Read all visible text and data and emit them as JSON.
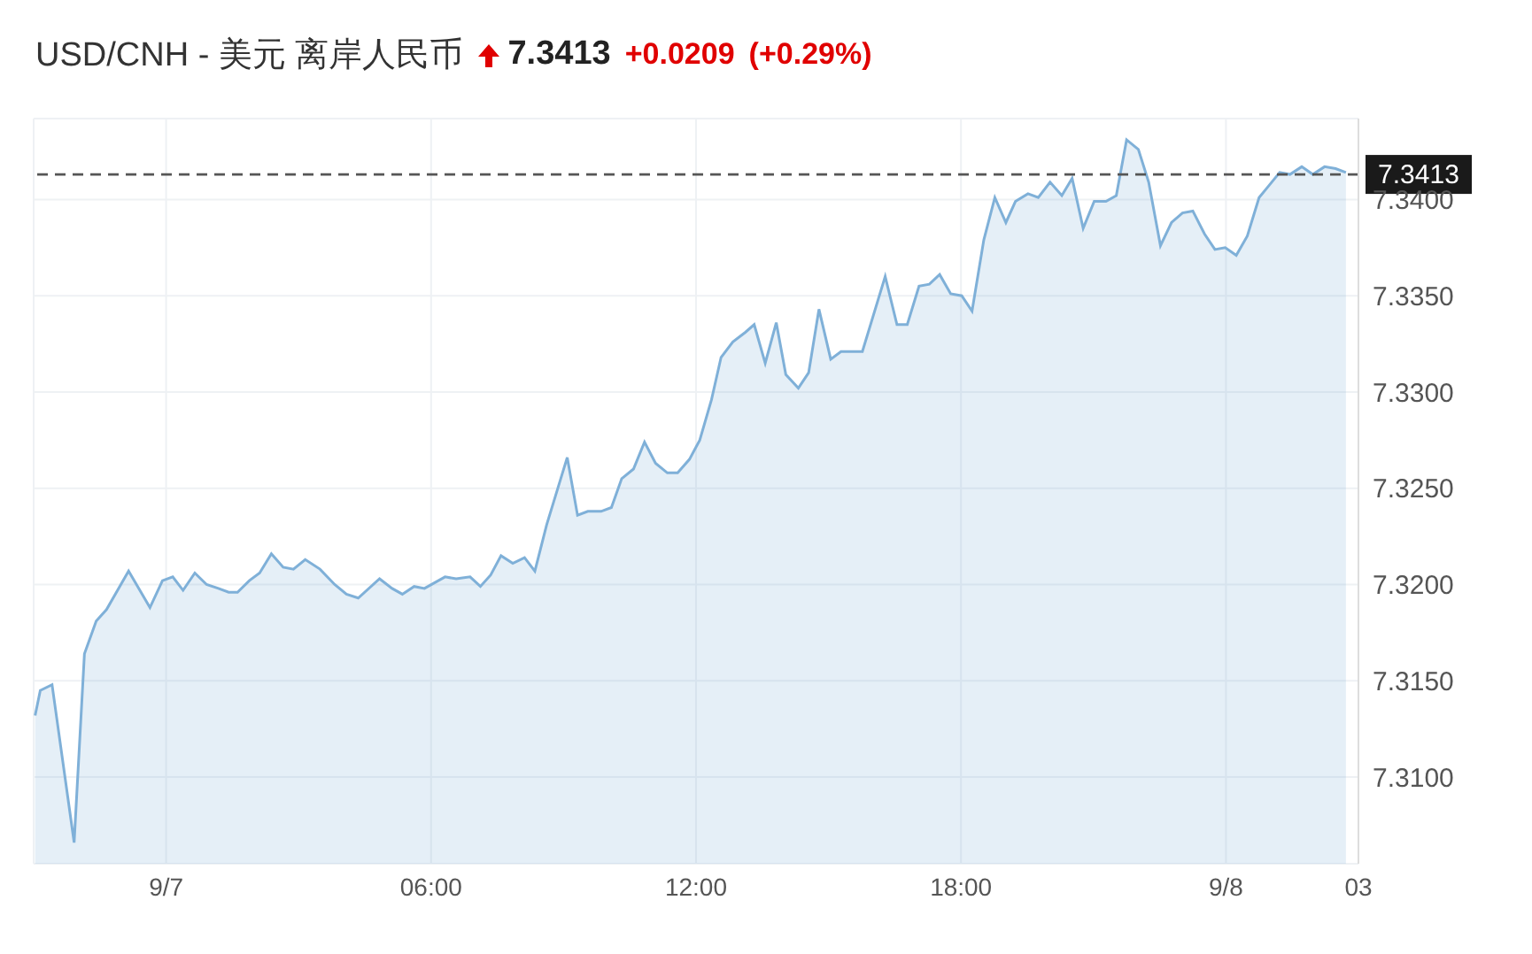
{
  "chart_data": {
    "type": "area",
    "title": "USD/CNH - 美元 离岸人民币",
    "annotations": [
      "7.3413",
      "+0.0209",
      "(+0.29%)"
    ],
    "x": [
      "--09-06T21:02",
      "--09-06T21:09",
      "--09-06T21:25",
      "--09-06T21:55",
      "--09-06T22:09",
      "--09-06T22:25",
      "--09-06T22:39",
      "--09-06T23:09",
      "--09-06T23:38",
      "--09-06T23:55",
      "--09-07T00:09",
      "--09-07T00:23",
      "--09-07T00:39",
      "--09-07T00:55",
      "--09-07T01:11",
      "--09-07T01:25",
      "--09-07T01:37",
      "--09-07T01:53",
      "--09-07T02:07",
      "--09-07T02:23",
      "--09-07T02:39",
      "--09-07T02:53",
      "--09-07T03:09",
      "--09-07T03:29",
      "--09-07T03:49",
      "--09-07T04:05",
      "--09-07T04:21",
      "--09-07T04:50",
      "--09-07T05:07",
      "--09-07T05:21",
      "--09-07T05:37",
      "--09-07T05:51",
      "--09-07T06:19",
      "--09-07T06:34",
      "--09-07T06:53",
      "--09-07T07:07",
      "--09-07T07:21",
      "--09-07T07:35",
      "--09-07T07:51",
      "--09-07T08:07",
      "--09-07T08:21",
      "--09-07T08:37",
      "--09-07T09:05",
      "--09-07T09:19",
      "--09-07T09:33",
      "--09-07T09:51",
      "--09-07T10:05",
      "--09-07T10:19",
      "--09-07T10:35",
      "--09-07T10:50",
      "--09-07T11:05",
      "--09-07T11:21",
      "--09-07T11:35",
      "--09-07T11:51",
      "--09-07T12:05",
      "--09-07T12:21",
      "--09-07T12:34",
      "--09-07T12:50",
      "--09-07T13:07",
      "--09-07T13:19",
      "--09-07T13:34",
      "--09-07T13:49",
      "--09-07T14:02",
      "--09-07T14:19",
      "--09-07T14:33",
      "--09-07T14:47",
      "--09-07T15:03",
      "--09-07T15:17",
      "--09-07T15:46",
      "--09-07T16:17",
      "--09-07T16:33",
      "--09-07T16:47",
      "--09-07T17:03",
      "--09-07T17:17",
      "--09-07T17:31",
      "--09-07T17:46",
      "--09-07T18:01",
      "--09-07T18:15",
      "--09-07T18:31",
      "--09-07T18:46",
      "--09-07T19:01",
      "--09-07T19:14",
      "--09-07T19:31",
      "--09-07T19:45",
      "--09-07T20:01",
      "--09-07T20:17",
      "--09-07T20:31",
      "--09-07T20:46",
      "--09-07T21:01",
      "--09-07T21:17",
      "--09-07T21:31",
      "--09-07T21:45",
      "--09-07T22:01",
      "--09-07T22:15",
      "--09-07T22:31",
      "--09-07T22:46",
      "--09-07T23:01",
      "--09-07T23:15",
      "--09-07T23:31",
      "--09-07T23:45",
      "--09-07T23:59",
      "--09-08T00:14",
      "--09-08T00:29",
      "--09-08T00:45",
      "--09-08T00:58",
      "--09-08T01:13",
      "--09-08T01:27",
      "--09-08T01:43",
      "--09-08T01:58",
      "--09-08T02:14",
      "--09-08T02:29",
      "--09-08T02:43"
    ],
    "series": [
      {
        "color": "#7fb0d8",
        "values": [
          7.3132,
          7.3145,
          7.3148,
          7.3066,
          7.3164,
          7.3181,
          7.3187,
          7.3207,
          7.3188,
          7.3202,
          7.3204,
          7.3197,
          7.3206,
          7.32,
          7.3198,
          7.3196,
          7.3196,
          7.3202,
          7.3206,
          7.3216,
          7.3209,
          7.3208,
          7.3213,
          7.3208,
          7.32,
          7.3195,
          7.3193,
          7.3203,
          7.3198,
          7.3195,
          7.3199,
          7.3198,
          7.3204,
          7.3203,
          7.3204,
          7.3199,
          7.3205,
          7.3215,
          7.3211,
          7.3214,
          7.3207,
          7.3231,
          7.3266,
          7.3236,
          7.3238,
          7.3238,
          7.324,
          7.3255,
          7.326,
          7.3274,
          7.3263,
          7.3258,
          7.3258,
          7.3265,
          7.3275,
          7.3296,
          7.3318,
          7.3326,
          7.3331,
          7.3335,
          7.3315,
          7.3336,
          7.3309,
          7.3302,
          7.331,
          7.3343,
          7.3317,
          7.3321,
          7.3321,
          7.336,
          7.3335,
          7.3335,
          7.3355,
          7.3356,
          7.3361,
          7.3351,
          7.335,
          7.3342,
          7.3379,
          7.3401,
          7.3388,
          7.3399,
          7.3403,
          7.3401,
          7.3409,
          7.3402,
          7.3411,
          7.3385,
          7.3399,
          7.3399,
          7.3402,
          7.3431,
          7.3426,
          7.3409,
          7.3376,
          7.3388,
          7.3393,
          7.3394,
          7.3382,
          7.3374,
          7.3375,
          7.3371,
          7.3381,
          7.3401,
          7.3407,
          7.3414,
          7.3413,
          7.3417,
          7.3413,
          7.3417,
          7.3416,
          7.3414
        ]
      }
    ],
    "xlim": [
      "--09-06T21:00",
      "--09-08T03:00"
    ],
    "xticks": [
      {
        "value": "--09-07T00:00",
        "label": "9/7"
      },
      {
        "value": "--09-07T06:00",
        "label": "06:00"
      },
      {
        "value": "--09-07T12:00",
        "label": "12:00"
      },
      {
        "value": "--09-07T18:00",
        "label": "18:00"
      },
      {
        "value": "--09-08T00:00",
        "label": "9/8"
      },
      {
        "value": "--09-08T03:00",
        "label": "03"
      }
    ],
    "ylim": [
      7.3055,
      7.3442
    ],
    "yticks": [
      {
        "value": 7.31,
        "label": "7.3100"
      },
      {
        "value": 7.315,
        "label": "7.3150"
      },
      {
        "value": 7.32,
        "label": "7.3200"
      },
      {
        "value": 7.325,
        "label": "7.3250"
      },
      {
        "value": 7.33,
        "label": "7.3300"
      },
      {
        "value": 7.335,
        "label": "7.3350"
      },
      {
        "value": 7.34,
        "label": "7.3400"
      }
    ],
    "grid": true,
    "ref_lines": [
      {
        "axis": "y",
        "value": 7.3413,
        "label": "7.3413",
        "color": "#555555",
        "line_style": "dashed"
      }
    ]
  }
}
